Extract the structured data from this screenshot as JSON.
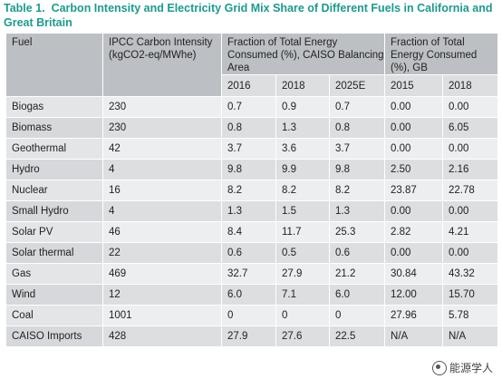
{
  "caption": {
    "label": "Table 1.",
    "title": "Carbon Intensity and Electricity Grid Mix Share of Different Fuels in California and Great Britain"
  },
  "table": {
    "headers": {
      "fuel": "Fuel",
      "ipcc": "IPCC Carbon Intensity (kgCO2-eq/MWhe)",
      "caiso": "Fraction of Total Energy Consumed (%), CAISO Balancing Area",
      "gb": "Fraction of Total Energy Consumed (%), GB"
    },
    "years": {
      "caiso": [
        "2016",
        "2018",
        "2025E"
      ],
      "gb": [
        "2015",
        "2018"
      ]
    },
    "rows": [
      {
        "fuel": "Biogas",
        "ipcc": "230",
        "c2016": "0.7",
        "c2018": "0.9",
        "c2025": "0.7",
        "g2015": "0.00",
        "g2018": "0.00"
      },
      {
        "fuel": "Biomass",
        "ipcc": "230",
        "c2016": "0.8",
        "c2018": "1.3",
        "c2025": "0.8",
        "g2015": "0.00",
        "g2018": "6.05"
      },
      {
        "fuel": "Geothermal",
        "ipcc": "42",
        "c2016": "3.7",
        "c2018": "3.6",
        "c2025": "3.7",
        "g2015": "0.00",
        "g2018": "0.00"
      },
      {
        "fuel": "Hydro",
        "ipcc": "4",
        "c2016": "9.8",
        "c2018": "9.9",
        "c2025": "9.8",
        "g2015": "2.50",
        "g2018": "2.16"
      },
      {
        "fuel": "Nuclear",
        "ipcc": "16",
        "c2016": "8.2",
        "c2018": "8.2",
        "c2025": "8.2",
        "g2015": "23.87",
        "g2018": "22.78"
      },
      {
        "fuel": "Small Hydro",
        "ipcc": "4",
        "c2016": "1.3",
        "c2018": "1.5",
        "c2025": "1.3",
        "g2015": "0.00",
        "g2018": "0.00"
      },
      {
        "fuel": "Solar PV",
        "ipcc": "46",
        "c2016": "8.4",
        "c2018": "11.7",
        "c2025": "25.3",
        "g2015": "2.82",
        "g2018": "4.21"
      },
      {
        "fuel": "Solar thermal",
        "ipcc": "22",
        "c2016": "0.6",
        "c2018": "0.5",
        "c2025": "0.6",
        "g2015": "0.00",
        "g2018": "0.00"
      },
      {
        "fuel": "Gas",
        "ipcc": "469",
        "c2016": "32.7",
        "c2018": "27.9",
        "c2025": "21.2",
        "g2015": "30.84",
        "g2018": "43.32"
      },
      {
        "fuel": "Wind",
        "ipcc": "12",
        "c2016": "6.0",
        "c2018": "7.1",
        "c2025": "6.0",
        "g2015": "12.00",
        "g2018": "15.70"
      },
      {
        "fuel": "Coal",
        "ipcc": "1001",
        "c2016": "0",
        "c2018": "0",
        "c2025": "0",
        "g2015": "27.96",
        "g2018": "5.78"
      },
      {
        "fuel": "CAISO Imports",
        "ipcc": "428",
        "c2016": "27.9",
        "c2018": "27.6",
        "c2025": "22.5",
        "g2015": "N/A",
        "g2018": "N/A"
      }
    ]
  },
  "watermark": {
    "text": "能源学人"
  }
}
